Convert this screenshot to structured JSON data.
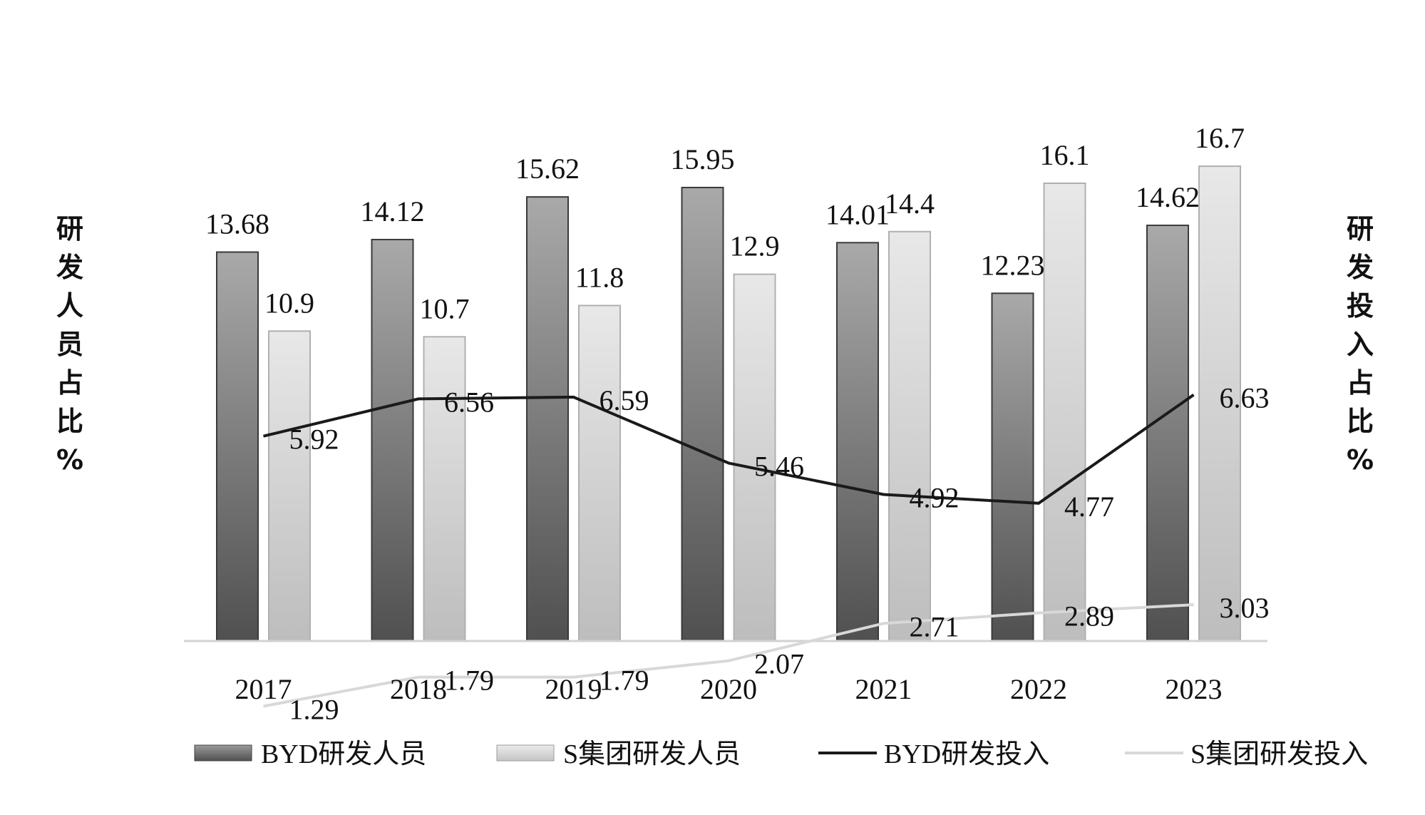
{
  "chart_data": {
    "type": "bar",
    "title": "",
    "categories": [
      "2017",
      "2018",
      "2019",
      "2020",
      "2021",
      "2022",
      "2023"
    ],
    "y_left_label": "研发人员占比%",
    "y_right_label": "研发投入占比%",
    "ylim_left": [
      0,
      20
    ],
    "ylim_right": [
      0,
      20
    ],
    "series": [
      {
        "name": "BYD研发人员",
        "kind": "bar",
        "axis": "left",
        "color": "#6d6d6d",
        "values": [
          13.68,
          14.12,
          15.62,
          15.95,
          14.01,
          12.23,
          14.62
        ]
      },
      {
        "name": "S集团研发人员",
        "kind": "bar",
        "axis": "left",
        "color": "#d4d4d4",
        "values": [
          10.9,
          10.7,
          11.8,
          12.9,
          14.4,
          16.1,
          16.7
        ]
      },
      {
        "name": "BYD研发投入",
        "kind": "line",
        "axis": "right",
        "color": "#1a1a1a",
        "values": [
          5.92,
          6.56,
          6.59,
          5.46,
          4.92,
          4.77,
          6.63
        ]
      },
      {
        "name": "S集团研发投入",
        "kind": "line",
        "axis": "right",
        "color": "#d8d8d8",
        "values": [
          1.29,
          1.79,
          1.79,
          2.07,
          2.71,
          2.89,
          3.03
        ]
      }
    ],
    "data_labels": {
      "bars_byd": [
        "13.68",
        "14.12",
        "15.62",
        "15.95",
        "14.01",
        "12.23",
        "14.62"
      ],
      "bars_s": [
        "10.9",
        "10.7",
        "11.8",
        "12.9",
        "14.4",
        "16.1",
        "16.7"
      ],
      "line_byd": [
        "5.92",
        "6.56",
        "6.59",
        "5.46",
        "4.92",
        "4.77",
        "6.63"
      ],
      "line_s": [
        "1.29",
        "1.79",
        "1.79",
        "2.07",
        "2.71",
        "2.89",
        "3.03"
      ]
    },
    "legend_position": "bottom",
    "grid": false
  }
}
